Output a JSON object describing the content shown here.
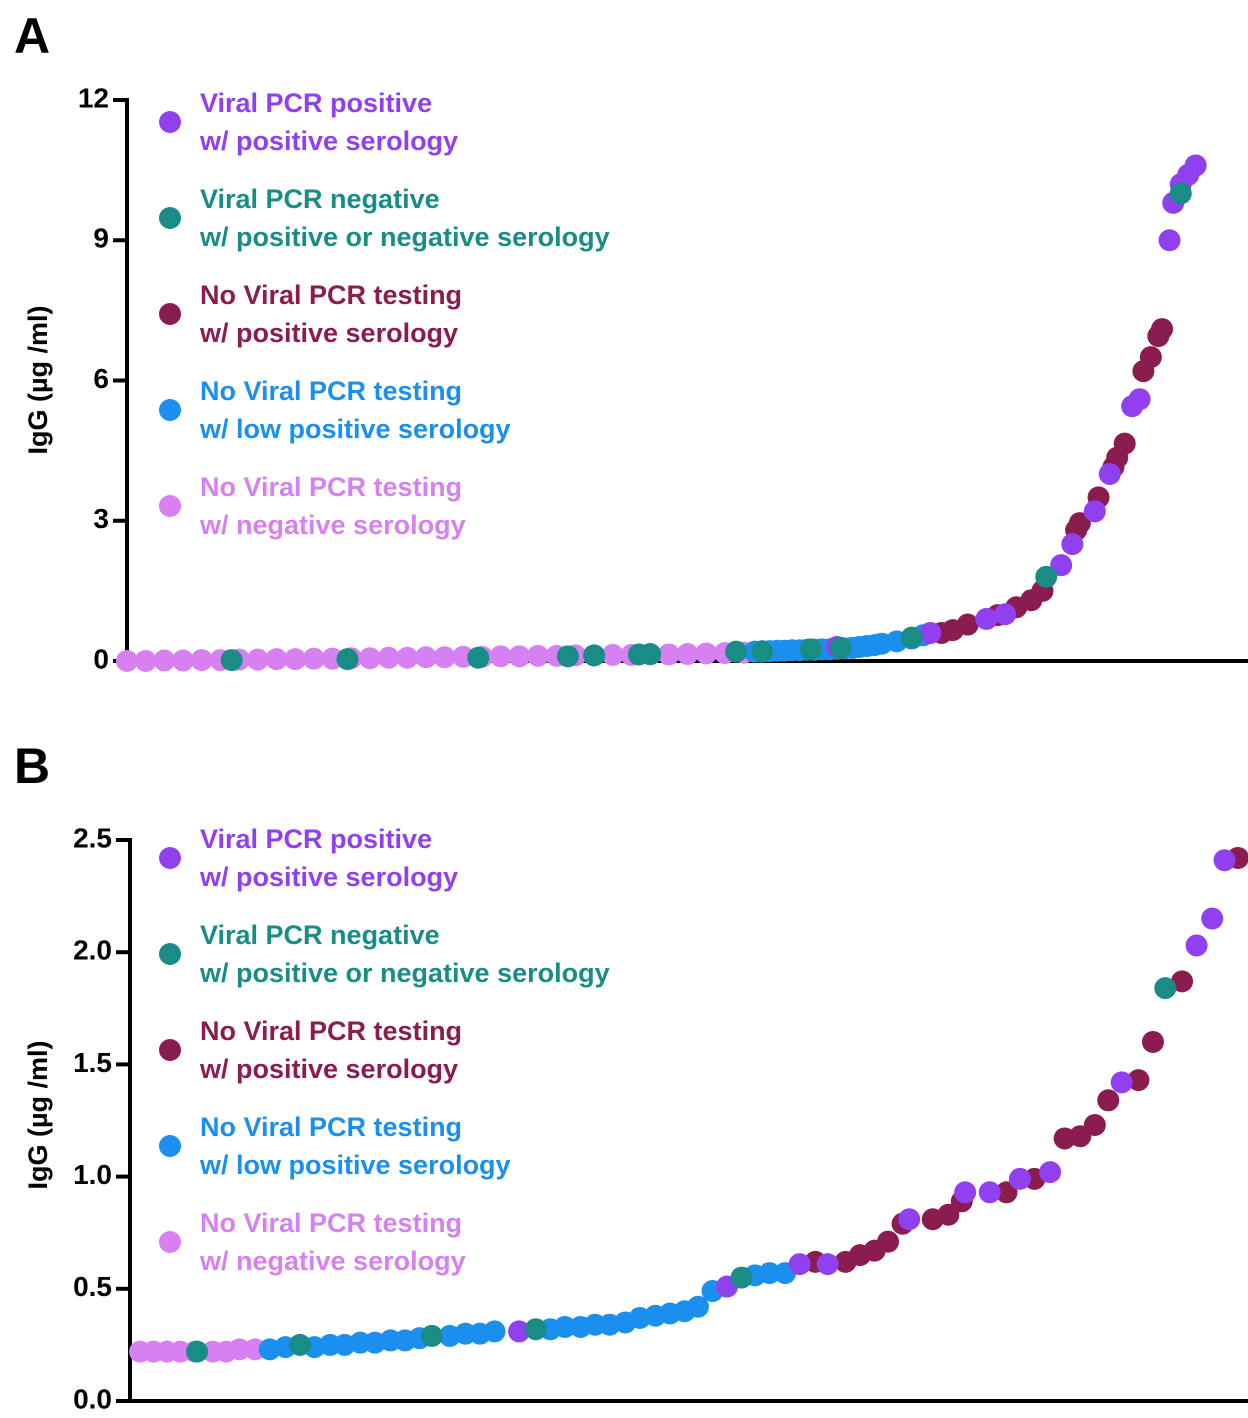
{
  "chart_data": [
    {
      "type": "scatter",
      "label": "A",
      "y_label": "IgG (µg /ml)",
      "xlim": [
        0,
        300
      ],
      "ylim": [
        0,
        12
      ],
      "yticks": [
        0,
        3,
        6,
        9,
        12
      ],
      "series": [
        {
          "name": "No Viral PCR testing\nw/ negative serology",
          "color": "#d680f2",
          "x": [
            0,
            5,
            10,
            15,
            20,
            25,
            30,
            35,
            40,
            45,
            50,
            55,
            60,
            65,
            70,
            75,
            80,
            85,
            90,
            95,
            100,
            105,
            110,
            115,
            120,
            125,
            130,
            135,
            140,
            145,
            150,
            155,
            160,
            165
          ],
          "values": [
            0,
            0,
            0.01,
            0.01,
            0.02,
            0.02,
            0.03,
            0.03,
            0.04,
            0.04,
            0.05,
            0.05,
            0.06,
            0.06,
            0.07,
            0.07,
            0.08,
            0.08,
            0.09,
            0.09,
            0.1,
            0.1,
            0.11,
            0.11,
            0.12,
            0.12,
            0.13,
            0.13,
            0.14,
            0.14,
            0.15,
            0.16,
            0.17,
            0.18
          ]
        },
        {
          "name": "No Viral PCR testing\nw/ low positive serology",
          "color": "#1a8fee",
          "x": [
            168,
            170,
            172,
            174,
            176,
            178,
            180,
            182,
            184,
            186,
            188,
            190,
            192,
            194,
            196,
            198,
            200,
            202,
            206,
            210,
            213
          ],
          "values": [
            0.2,
            0.21,
            0.21,
            0.22,
            0.22,
            0.23,
            0.23,
            0.24,
            0.24,
            0.25,
            0.25,
            0.26,
            0.27,
            0.28,
            0.3,
            0.32,
            0.34,
            0.37,
            0.42,
            0.48,
            0.55
          ]
        },
        {
          "name": "No Viral PCR testing\nw/ positive serology",
          "color": "#8a1c4f",
          "x": [
            277,
            276,
            274,
            272,
            267,
            265,
            264,
            260,
            255,
            254,
            245,
            242,
            238,
            233,
            225,
            221,
            218
          ],
          "values": [
            7.1,
            6.95,
            6.5,
            6.2,
            4.65,
            4.35,
            4.15,
            3.5,
            2.95,
            2.8,
            1.5,
            1.3,
            1.15,
            0.98,
            0.78,
            0.66,
            0.6
          ]
        },
        {
          "name": "Viral PCR positive\nw/ positive serology",
          "color": "#9140f0",
          "x": [
            286,
            284,
            282,
            280,
            279,
            271,
            269,
            263,
            259,
            253,
            250,
            235,
            230,
            215,
            190
          ],
          "values": [
            10.6,
            10.4,
            10.2,
            9.8,
            9.0,
            5.6,
            5.45,
            4.0,
            3.2,
            2.5,
            2.05,
            1.0,
            0.9,
            0.6,
            0.3
          ]
        },
        {
          "name": "Viral PCR negative\nw/ positive or negative serology",
          "color": "#1a8c86",
          "x": [
            282,
            246,
            210,
            191,
            183,
            170,
            163,
            140,
            137,
            125,
            118,
            94,
            59,
            28
          ],
          "values": [
            10.0,
            1.8,
            0.5,
            0.28,
            0.25,
            0.2,
            0.2,
            0.15,
            0.14,
            0.12,
            0.1,
            0.07,
            0.04,
            0.02
          ]
        }
      ]
    },
    {
      "type": "scatter",
      "label": "B",
      "y_label": "IgG (µg /ml)",
      "xlim": [
        0,
        100
      ],
      "ylim": [
        0,
        2.5
      ],
      "yticks": [
        {
          "value": 0,
          "label": "0.0"
        },
        0.5,
        {
          "value": 1,
          "label": "1.0"
        },
        1.5,
        {
          "value": 2,
          "label": "2.0"
        },
        2.5
      ],
      "series": [
        {
          "name": "No Viral PCR testing\nw/ negative serology",
          "color": "#d680f2",
          "x": [
            0.9,
            2.1,
            3.3,
            4.5,
            5.8,
            7.4,
            8.6,
            9.8,
            11.2
          ],
          "values": [
            0.22,
            0.22,
            0.22,
            0.22,
            0.22,
            0.22,
            0.22,
            0.23,
            0.23
          ]
        },
        {
          "name": "No Viral PCR testing\nw/ low positive serology",
          "color": "#1a8fee",
          "x": [
            12.5,
            13.9,
            16.5,
            17.9,
            19.2,
            20.6,
            21.9,
            23.3,
            24.6,
            25.9,
            28.6,
            30.0,
            31.3,
            32.6,
            37.6,
            38.9,
            40.3,
            41.6,
            42.9,
            44.3,
            45.6,
            47.0,
            48.3,
            49.6,
            50.8,
            52.1,
            55.9,
            57.2,
            58.6
          ],
          "values": [
            0.23,
            0.24,
            0.24,
            0.25,
            0.25,
            0.26,
            0.26,
            0.27,
            0.27,
            0.28,
            0.29,
            0.3,
            0.3,
            0.31,
            0.32,
            0.33,
            0.33,
            0.34,
            0.34,
            0.35,
            0.37,
            0.38,
            0.39,
            0.4,
            0.42,
            0.49,
            0.56,
            0.57,
            0.57
          ]
        },
        {
          "name": "No Viral PCR testing\nw/ positive serology",
          "color": "#8a1c4f",
          "x": [
            61.3,
            64.0,
            65.3,
            66.6,
            67.8,
            69.1,
            71.8,
            73.2,
            74.4,
            78.4,
            80.9,
            83.6,
            85.0,
            86.3,
            87.5,
            90.2,
            91.5,
            94.1,
            99.1
          ],
          "values": [
            0.62,
            0.62,
            0.65,
            0.67,
            0.71,
            0.79,
            0.81,
            0.83,
            0.89,
            0.93,
            0.99,
            1.17,
            1.18,
            1.23,
            1.34,
            1.43,
            1.6,
            1.87,
            2.42
          ]
        },
        {
          "name": "Viral PCR positive\nw/ positive serology",
          "color": "#9140f0",
          "x": [
            34.8,
            53.4,
            59.9,
            62.4,
            69.7,
            74.7,
            76.9,
            79.6,
            82.3,
            88.7,
            95.4,
            96.8,
            97.9
          ],
          "values": [
            0.31,
            0.51,
            0.61,
            0.61,
            0.81,
            0.93,
            0.93,
            0.99,
            1.02,
            1.42,
            2.03,
            2.15,
            2.41
          ]
        },
        {
          "name": "Viral PCR negative\nw/ positive or negative serology",
          "color": "#1a8c86",
          "x": [
            6.0,
            15.2,
            27.0,
            36.3,
            54.7,
            92.6
          ],
          "values": [
            0.22,
            0.25,
            0.29,
            0.32,
            0.55,
            1.84
          ]
        }
      ]
    }
  ]
}
